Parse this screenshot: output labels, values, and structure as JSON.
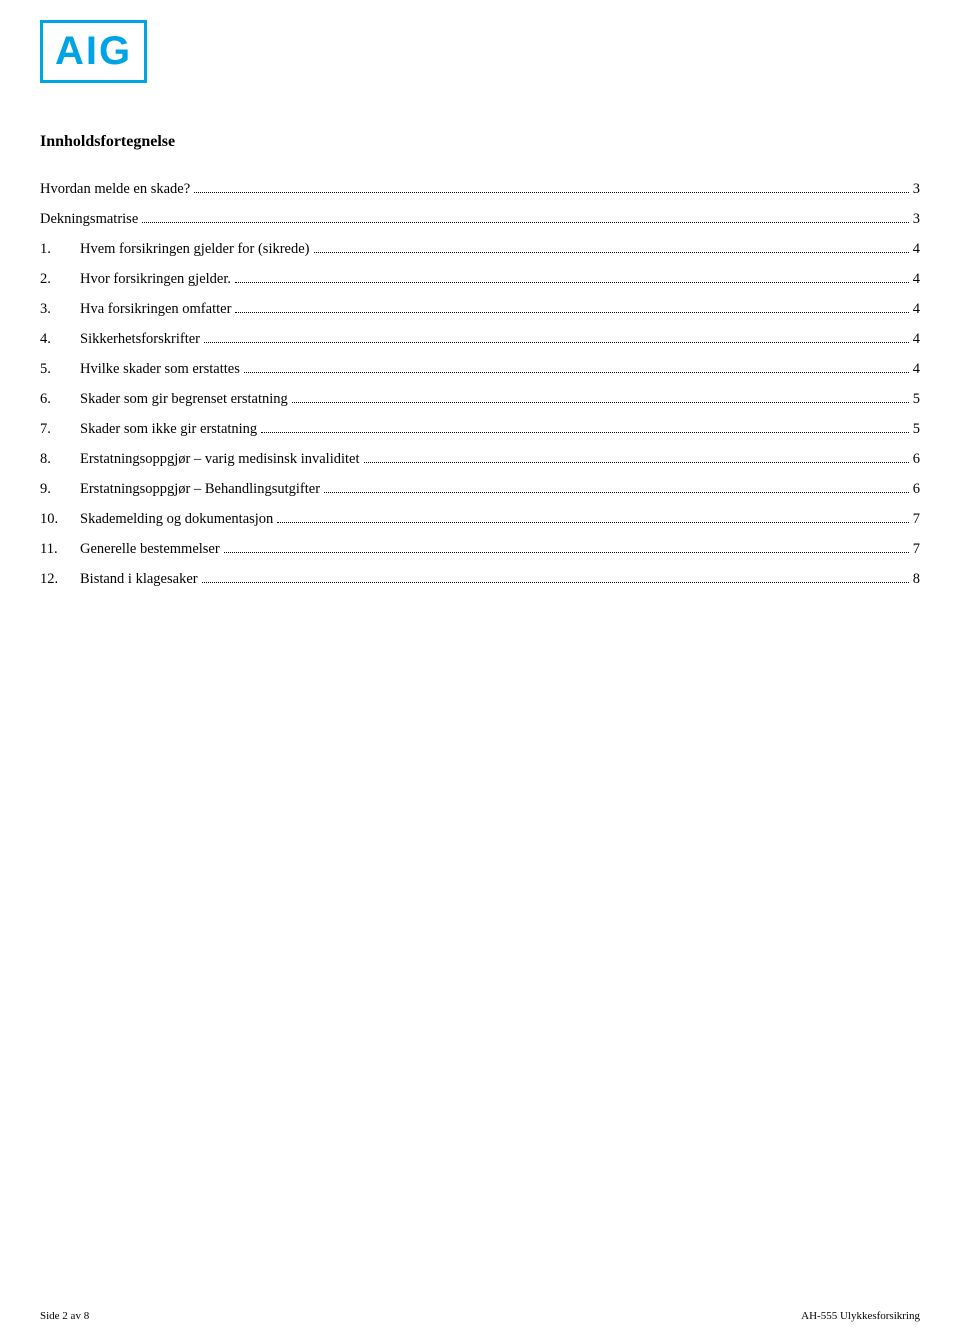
{
  "logo": {
    "text": "AIG",
    "border_color": "#00a4e4",
    "text_color": "#00a4e4"
  },
  "toc_title": "Innholdsfortegnelse",
  "toc": [
    {
      "num": "",
      "label": "Hvordan melde en skade?",
      "page": "3"
    },
    {
      "num": "",
      "label": "Dekningsmatrise",
      "page": "3"
    },
    {
      "num": "1.",
      "label": "Hvem forsikringen gjelder for (sikrede)",
      "page": "4"
    },
    {
      "num": "2.",
      "label": "Hvor forsikringen gjelder.",
      "page": "4"
    },
    {
      "num": "3.",
      "label": "Hva forsikringen omfatter",
      "page": "4"
    },
    {
      "num": "4.",
      "label": "Sikkerhetsforskrifter",
      "page": "4"
    },
    {
      "num": "5.",
      "label": "Hvilke skader som erstattes",
      "page": "4"
    },
    {
      "num": "6.",
      "label": "Skader som gir begrenset erstatning",
      "page": "5"
    },
    {
      "num": "7.",
      "label": "Skader som ikke gir erstatning",
      "page": "5"
    },
    {
      "num": "8.",
      "label": "Erstatningsoppgjør – varig medisinsk invaliditet",
      "page": "6"
    },
    {
      "num": "9.",
      "label": "Erstatningsoppgjør – Behandlingsutgifter",
      "page": "6"
    },
    {
      "num": "10.",
      "label": "Skademelding og dokumentasjon",
      "page": "7"
    },
    {
      "num": "11.",
      "label": "Generelle bestemmelser",
      "page": "7"
    },
    {
      "num": "12.",
      "label": "Bistand i klagesaker",
      "page": "8"
    }
  ],
  "footer": {
    "left": "Side 2 av 8",
    "right": "AH-555 Ulykkesforsikring"
  },
  "colors": {
    "background": "#ffffff",
    "text": "#000000",
    "accent": "#00a4e4"
  }
}
